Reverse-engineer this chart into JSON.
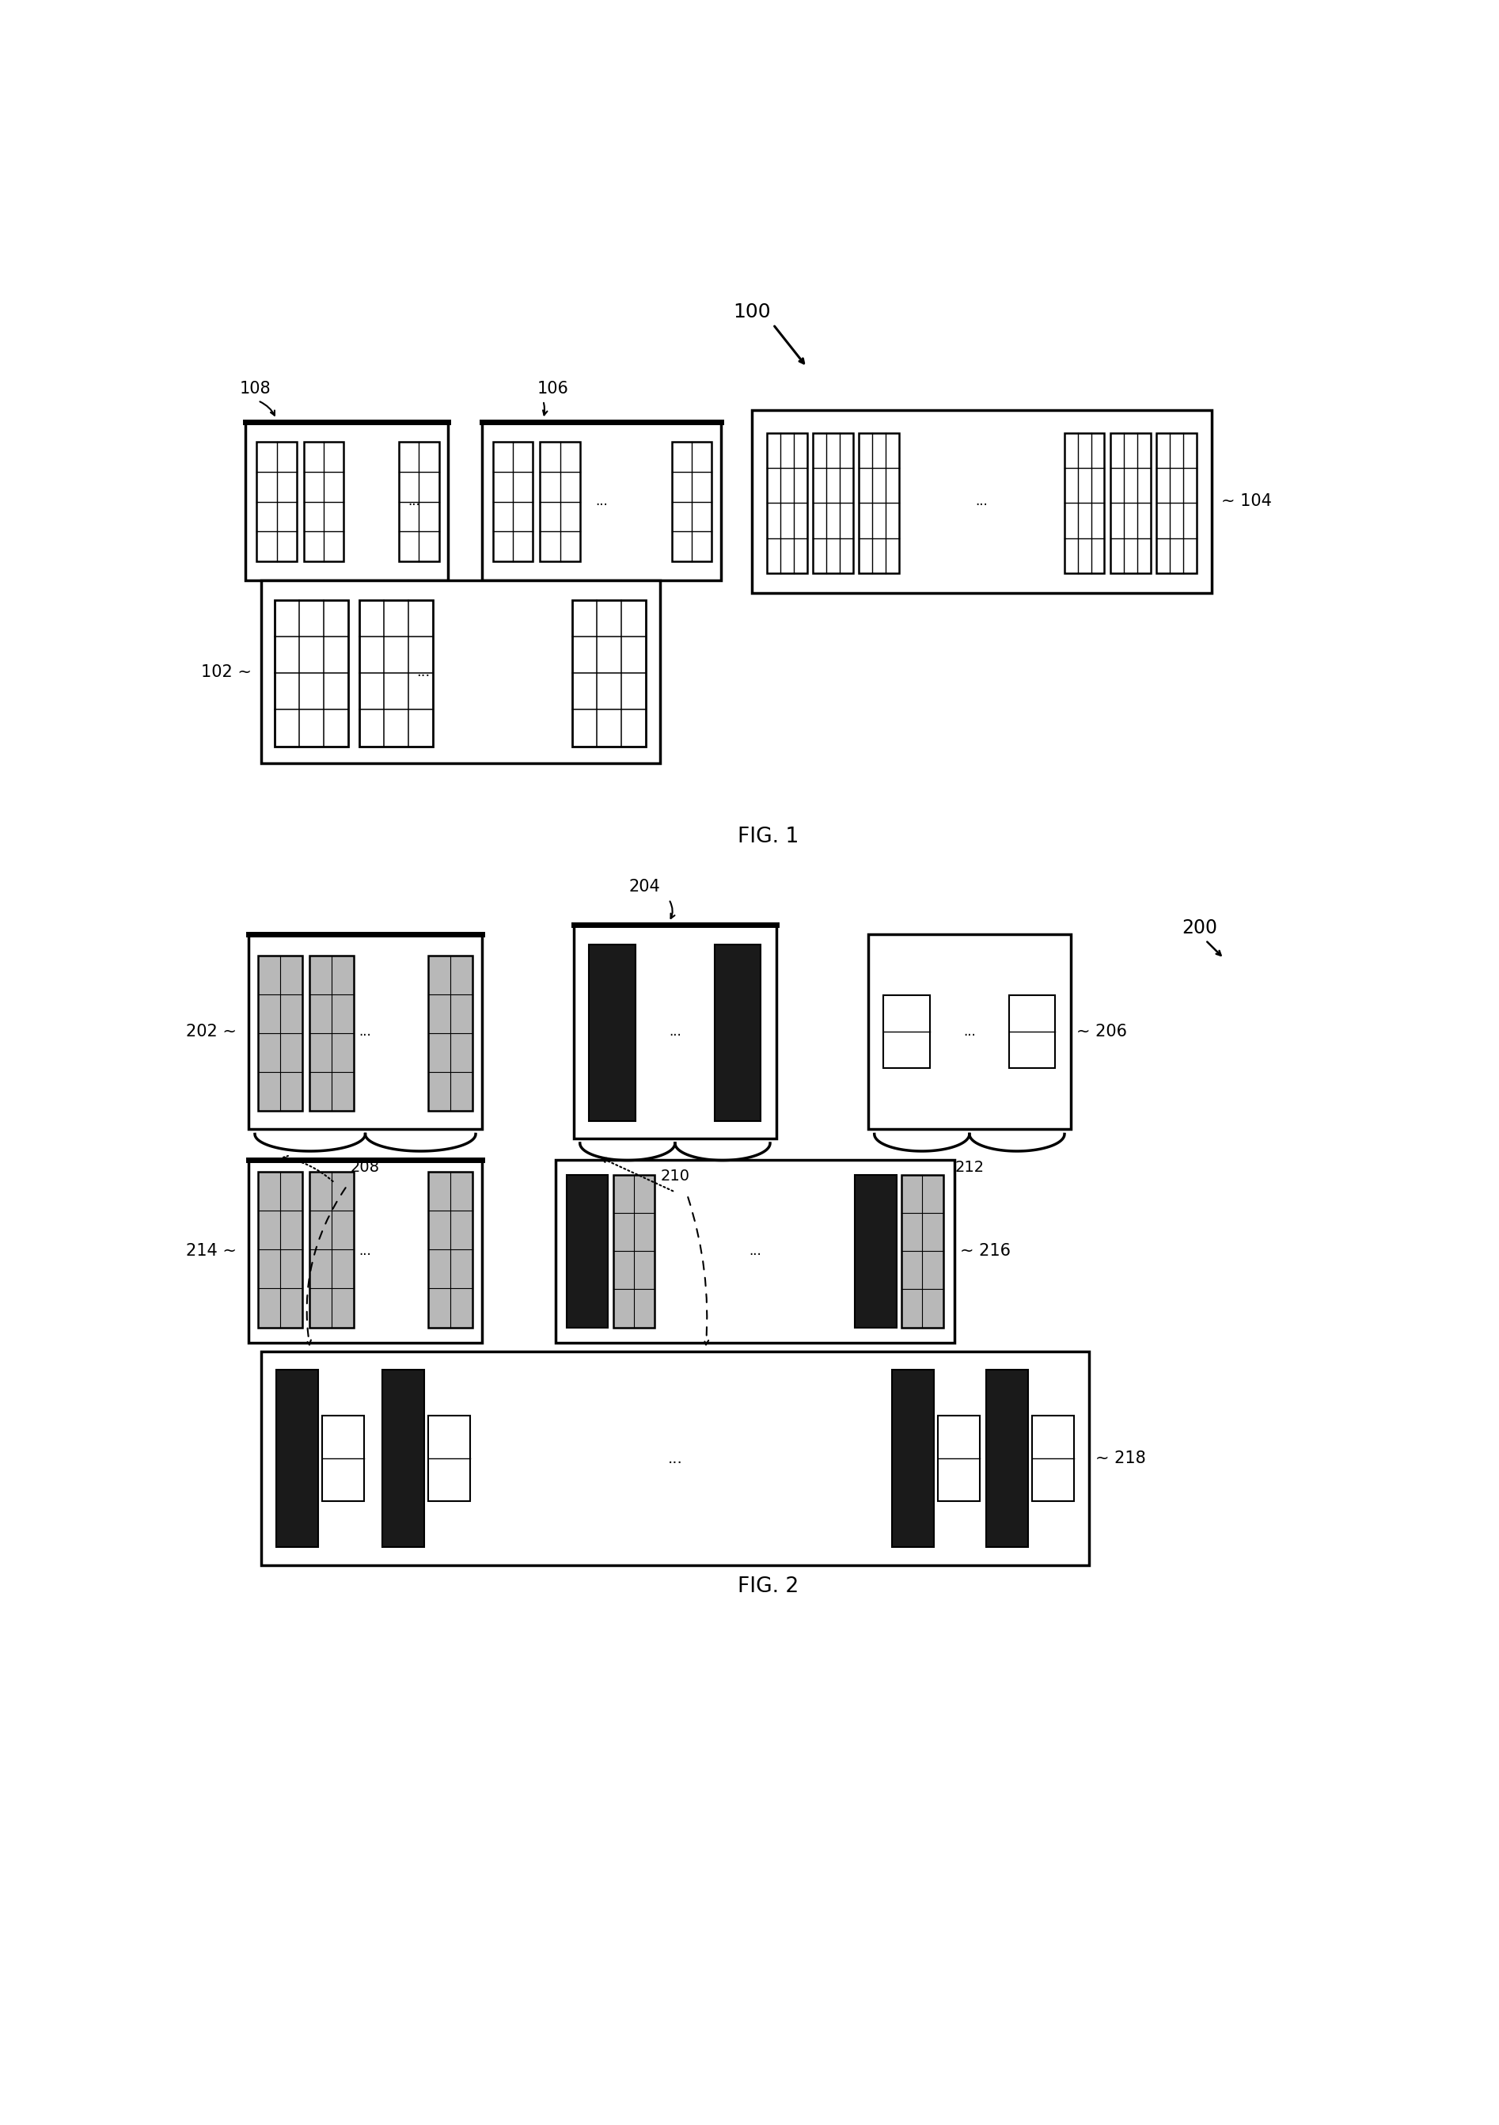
{
  "fig1_label": "FIG. 1",
  "fig2_label": "FIG. 2",
  "label_100": "100",
  "label_102": "102",
  "label_104": "104",
  "label_106": "106",
  "label_108": "108",
  "label_200": "200",
  "label_202": "202",
  "label_204": "204",
  "label_206": "206",
  "label_208": "208",
  "label_210": "210",
  "label_212": "212",
  "label_214": "214",
  "label_216": "216",
  "label_218": "218",
  "bg_color": "#ffffff",
  "dark_fill": "#1a1a1a",
  "gray_fill": "#b8b8b8",
  "white_fill": "#ffffff"
}
